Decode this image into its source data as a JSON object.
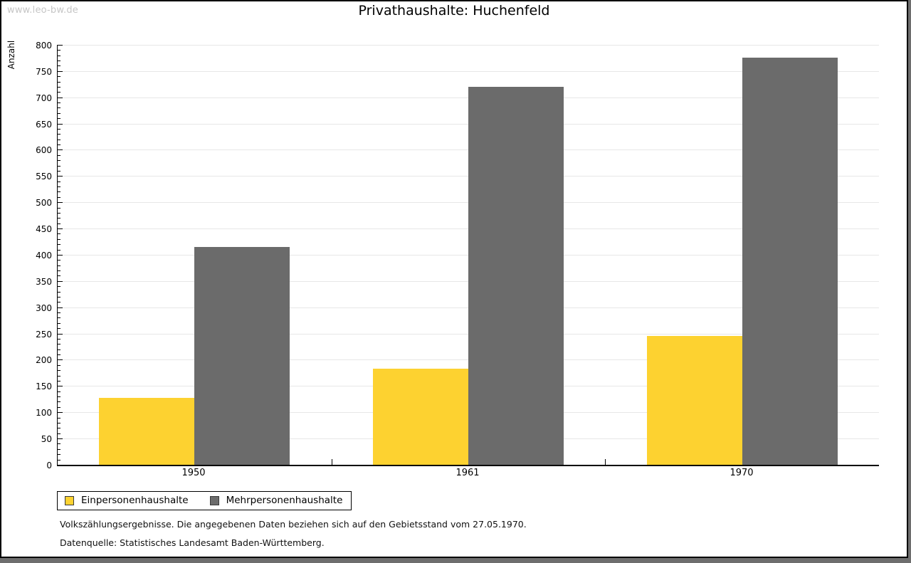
{
  "watermark": "www.leo-bw.de",
  "chart_data": {
    "type": "bar",
    "title": "Privathaushalte: Huchenfeld",
    "ylabel": "Anzahl",
    "xlabel": "",
    "categories": [
      "1950",
      "1961",
      "1970"
    ],
    "series": [
      {
        "name": "Einpersonenhaushalte",
        "color": "#fdd230",
        "values": [
          127,
          183,
          246
        ]
      },
      {
        "name": "Mehrpersonenhaushalte",
        "color": "#6b6b6b",
        "values": [
          415,
          720,
          775
        ]
      }
    ],
    "ylim": [
      0,
      800
    ],
    "ytick_step": 50,
    "yminor_tick_step": 10,
    "grid": "horizontal-major",
    "legend_position": "bottom-left",
    "gridline_color": "#e7e7e7"
  },
  "footnotes": [
    "Volkszählungsergebnisse. Die angegebenen Daten beziehen sich auf den Gebietsstand vom 27.05.1970.",
    "Datenquelle: Statistisches Landesamt Baden-Württemberg."
  ]
}
